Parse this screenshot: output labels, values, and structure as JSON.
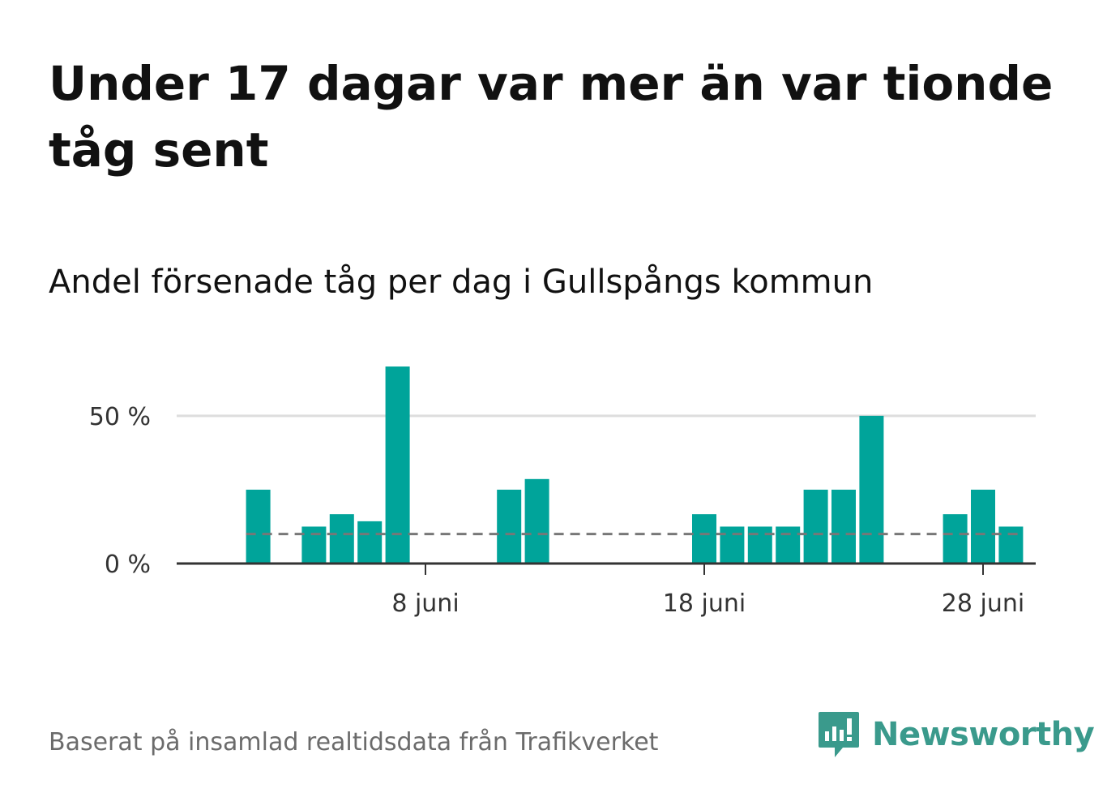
{
  "header": {
    "title": "Under 17 dagar var mer än var tionde tåg sent",
    "subtitle": "Andel försenade tåg per dag i Gullspångs kommun"
  },
  "footer": {
    "source": "Baserat på insamlad realtidsdata från Trafikverket",
    "brand": "Newsworthy"
  },
  "colors": {
    "bar": "#00a49a",
    "reference_line": "#777777",
    "grid": "#dddddd",
    "axis": "#333333",
    "brand": "#3a9a8c"
  },
  "chart_data": {
    "type": "bar",
    "title": "Andel försenade tåg per dag i Gullspångs kommun",
    "xlabel": "",
    "ylabel": "",
    "x_domain": [
      1,
      30
    ],
    "categories": [
      2,
      3,
      4,
      5,
      6,
      7,
      8,
      9,
      10,
      11,
      12,
      13,
      14,
      15,
      16,
      17,
      18,
      19,
      20,
      21,
      22,
      23,
      24,
      25,
      26,
      27,
      28,
      29
    ],
    "values": [
      25,
      0,
      12.5,
      16.7,
      14.3,
      66.7,
      0,
      0,
      0,
      25,
      28.6,
      0,
      0,
      0,
      0,
      0,
      16.7,
      12.5,
      12.5,
      12.5,
      25,
      25,
      50,
      0,
      0,
      16.7,
      25,
      12.5
    ],
    "ylim": [
      0,
      70
    ],
    "yticks": [
      0,
      50
    ],
    "ytick_labels": [
      "0 %",
      "50 %"
    ],
    "xticks": [
      8,
      18,
      28
    ],
    "xtick_labels": [
      "8 juni",
      "18 juni",
      "28 juni"
    ],
    "reference_line": {
      "value": 10,
      "label": ""
    },
    "grid": true
  }
}
